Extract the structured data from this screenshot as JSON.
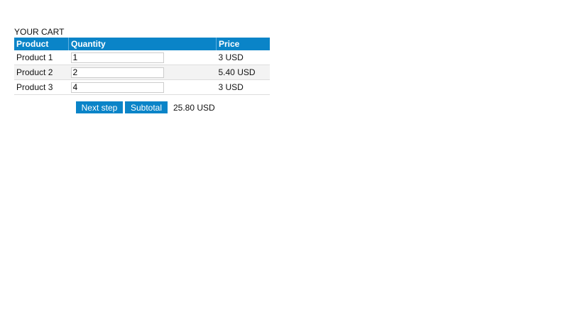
{
  "cart": {
    "title": "YOUR CART",
    "columns": [
      "Product",
      "Quantity",
      "Price"
    ],
    "rows": [
      {
        "product": "Product 1",
        "quantity": "1",
        "price": "3 USD"
      },
      {
        "product": "Product 2",
        "quantity": "2",
        "price": "5.40 USD"
      },
      {
        "product": "Product 3",
        "quantity": "4",
        "price": "3 USD"
      }
    ],
    "next_step_label": "Next step",
    "subtotal_label": "Subtotal",
    "subtotal_value": "25.80 USD"
  },
  "colors": {
    "accent": "#0a84c8"
  }
}
